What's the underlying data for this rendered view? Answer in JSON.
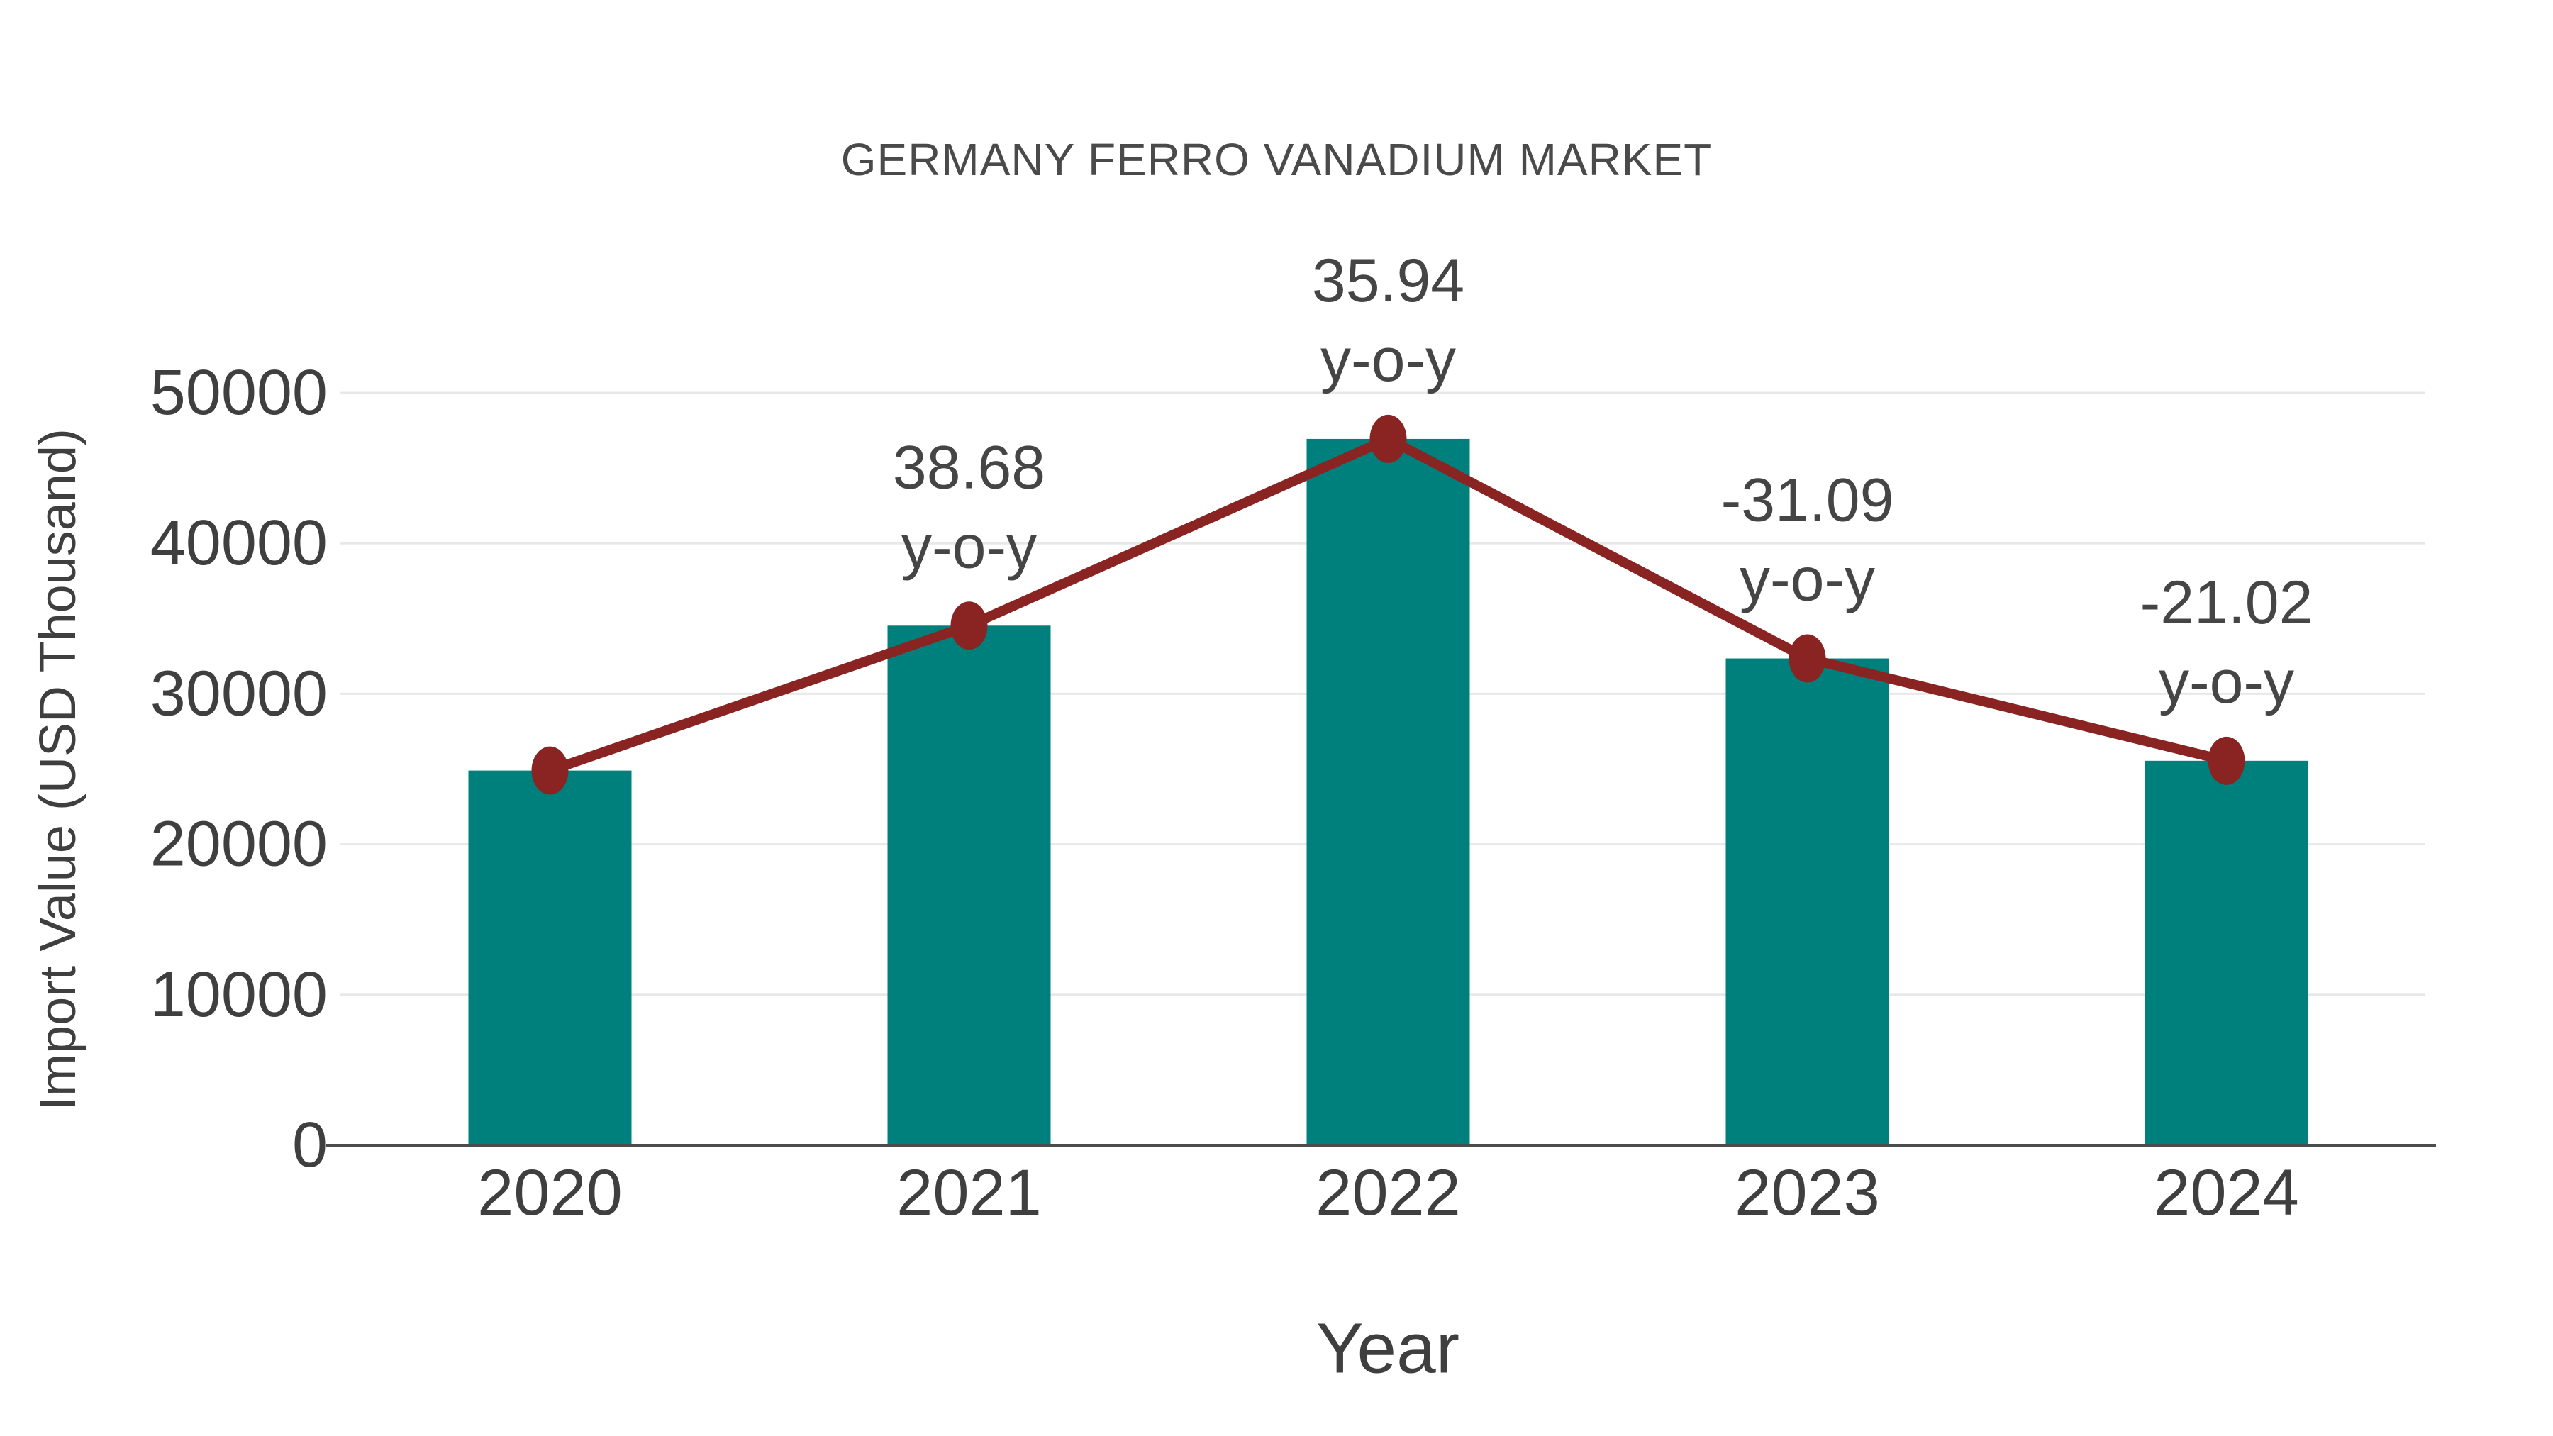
{
  "chart_data": {
    "type": "bar",
    "title": "GERMANY FERRO VANADIUM MARKET",
    "xlabel": "Year",
    "ylabel": "Import Value (USD Thousand)",
    "categories": [
      "2020",
      "2021",
      "2022",
      "2023",
      "2024"
    ],
    "series": [
      {
        "name": "Import Value (USD Thousand)",
        "type": "bar",
        "color": "#00807d",
        "values": [
          24900,
          34530,
          46940,
          32350,
          25550
        ]
      },
      {
        "name": "y-o-y",
        "type": "line",
        "color": "#8a2423",
        "plotted_at": "bar-tops",
        "values": [
          null,
          38.68,
          35.94,
          -31.09,
          -21.02
        ],
        "value_labels": [
          "",
          "38.68",
          "35.94",
          "-31.09",
          "-21.02"
        ],
        "label_suffix": "y-o-y"
      }
    ],
    "yticks": [
      0,
      10000,
      20000,
      30000,
      40000,
      50000
    ],
    "ylim": [
      0,
      50000
    ],
    "grid": true,
    "legend": "none"
  },
  "colors": {
    "bar": "#00807d",
    "line": "#8a2423",
    "grid": "#e8e8e8",
    "axis": "#4c4c4c",
    "tick_text": "#3f3f3f",
    "annotation_text": "#454545",
    "title_text": "#4a4a4a",
    "background": "#ffffff"
  }
}
